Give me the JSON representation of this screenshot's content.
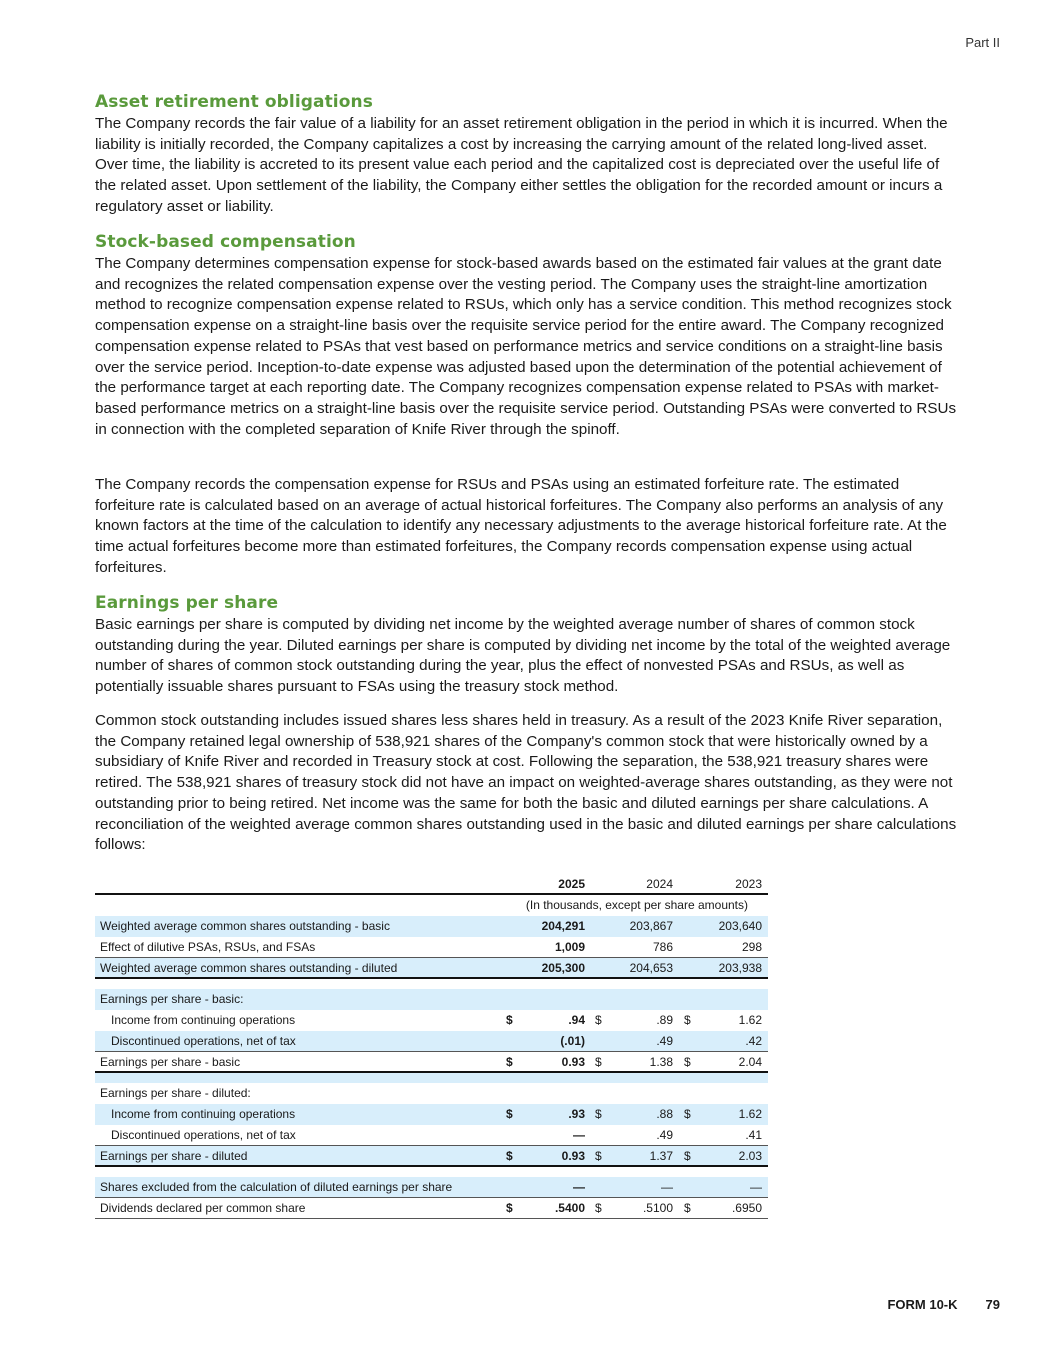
{
  "header": {
    "part": "Part II"
  },
  "sections": [
    {
      "heading": "Asset retirement obligations",
      "paragraphs": [
        "The Company records the fair value of a liability for an asset retirement obligation in the period in which it is incurred. When the liability is initially recorded, the Company capitalizes a cost by increasing the carrying amount of the related long-lived asset. Over time, the liability is accreted to its present value each period and the capitalized cost is depreciated over the useful life of the related asset. Upon settlement of the liability, the Company either settles the obligation for the recorded amount or incurs a regulatory asset or liability."
      ]
    },
    {
      "heading": "Stock-based compensation",
      "paragraphs": [
        "The Company determines compensation expense for stock-based awards based on the estimated fair values at the grant date and recognizes the related compensation expense over the vesting period. The Company uses the straight-line amortization method to recognize compensation expense related to RSUs, which only has a service condition. This method recognizes stock compensation expense on a straight-line basis over the requisite service period for the entire award. The Company recognized compensation expense related to PSAs that vest based on performance metrics and service conditions on a straight-line basis over the service period. Inception-to-date expense was adjusted based upon the determination of the potential achievement of the performance target at each reporting date. The Company recognizes compensation expense related to PSAs with market-based performance metrics on a straight-line basis over the requisite service period. Outstanding PSAs were converted to RSUs in connection with the completed separation of Knife River through the spinoff.",
        "The Company records the compensation expense for RSUs and PSAs using an estimated forfeiture rate. The estimated forfeiture rate is calculated based on an average of actual historical forfeitures. The Company also performs an analysis of any known factors at the time of the calculation to identify any necessary adjustments to the average historical forfeiture rate. At the time actual forfeitures become more than estimated forfeitures, the Company records compensation expense using actual forfeitures."
      ]
    },
    {
      "heading": "Earnings per share",
      "paragraphs": [
        "Basic earnings per share is computed by dividing net income by the weighted average number of shares of common stock outstanding during the year. Diluted earnings per share is computed by dividing net income by the total of the weighted average number of shares of common stock outstanding during the year, plus the effect of nonvested PSAs and RSUs, as well as potentially issuable shares pursuant to FSAs using the treasury stock method.",
        "Common stock outstanding includes issued shares less shares held in treasury. As a result of the 2023 Knife River separation, the Company retained legal ownership of 538,921 shares of the Company's common stock that were historically owned by a subsidiary of Knife River and recorded in Treasury stock at cost. Following the separation, the 538,921 treasury shares were retired. The 538,921 shares of treasury stock did not have an impact on weighted-average shares outstanding, as they were not outstanding prior to being retired. Net income was the same for both the basic and diluted earnings per share calculations. A reconciliation of the weighted average common shares outstanding used in the basic and diluted earnings per share calculations follows:"
      ]
    }
  ],
  "table": {
    "years": [
      "2025",
      "2024",
      "2023"
    ],
    "units": "(In thousands, except per share amounts)",
    "rows": [
      {
        "label": "Weighted average common shares outstanding - basic",
        "values": [
          "204,291",
          "203,867",
          "203,640"
        ],
        "dollar": false,
        "style": "blue"
      },
      {
        "label": "Effect of dilutive PSAs, RSUs, and FSAs",
        "values": [
          "1,009",
          "786",
          "298"
        ],
        "dollar": false,
        "style": "thin"
      },
      {
        "label": "Weighted average common shares outstanding - diluted",
        "values": [
          "205,300",
          "204,653",
          "203,938"
        ],
        "dollar": false,
        "style": "blue thick"
      },
      {
        "gap": true
      },
      {
        "label": "Earnings per share - basic:",
        "values": [
          "",
          "",
          ""
        ],
        "dollar": false,
        "style": "blue"
      },
      {
        "label": "Income from continuing operations",
        "values": [
          ".94",
          ".89",
          "1.62"
        ],
        "dollar": true,
        "indent": true,
        "style": ""
      },
      {
        "label": "Discontinued operations, net of tax",
        "values": [
          "(.01)",
          ".49",
          ".42"
        ],
        "dollar": false,
        "indent": true,
        "style": "blue thin"
      },
      {
        "label": "Earnings per share - basic",
        "values": [
          "0.93",
          "1.38",
          "2.04"
        ],
        "dollar": true,
        "style": "thick"
      },
      {
        "gap": true,
        "style": "blue"
      },
      {
        "label": "Earnings per share - diluted:",
        "values": [
          "",
          "",
          ""
        ],
        "dollar": false,
        "style": ""
      },
      {
        "label": "Income from continuing operations",
        "values": [
          ".93",
          ".88",
          "1.62"
        ],
        "dollar": true,
        "indent": true,
        "style": "blue"
      },
      {
        "label": "Discontinued operations, net of tax",
        "values": [
          "—",
          ".49",
          ".41"
        ],
        "dollar": false,
        "indent": true,
        "style": "thin"
      },
      {
        "label": "Earnings per share - diluted",
        "values": [
          "0.93",
          "1.37",
          "2.03"
        ],
        "dollar": true,
        "style": "blue thick"
      },
      {
        "gap": true
      },
      {
        "label": "Shares excluded from the calculation of diluted earnings per share",
        "values": [
          "—",
          "—",
          "—"
        ],
        "dollar": false,
        "style": "blue thin"
      },
      {
        "label": "Dividends declared per common share",
        "values": [
          ".5400",
          ".5100",
          ".6950"
        ],
        "dollar": true,
        "style": "thin"
      }
    ],
    "currency_symbol": "$"
  },
  "footer": {
    "form": "FORM 10-K",
    "page": "79"
  },
  "colors": {
    "heading": "#5a9a3c",
    "row_highlight": "#d8eefb"
  }
}
